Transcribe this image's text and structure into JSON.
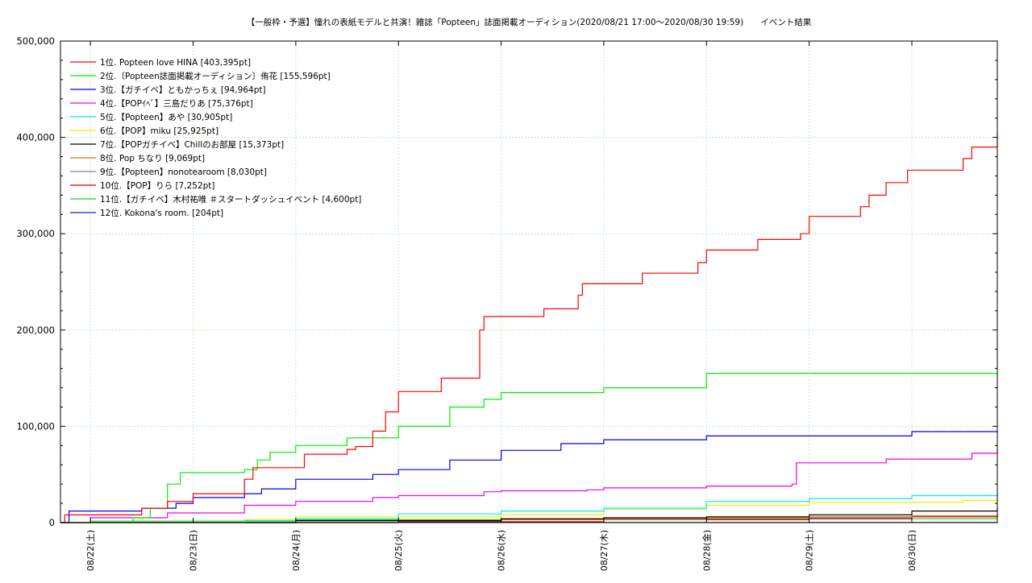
{
  "chart_data": {
    "type": "line",
    "title": "【一般枠・予選】憧れの表紙モデルと共演！雑誌「Popteen」誌面掲載オーディション(2020/08/21 17:00〜2020/08/30 19:59)　　イベント結果",
    "xlabel": "",
    "ylabel": "",
    "xlim": [
      "2020-08-21 17:00",
      "2020-08-30 19:59"
    ],
    "ylim": [
      0,
      500000
    ],
    "grid": true,
    "legend_position": "top-left",
    "yticks": [
      {
        "value": 0,
        "label": "0"
      },
      {
        "value": 100000,
        "label": "100,000"
      },
      {
        "value": 200000,
        "label": "200,000"
      },
      {
        "value": 300000,
        "label": "300,000"
      },
      {
        "value": 400000,
        "label": "400,000"
      },
      {
        "value": 500000,
        "label": "500,000"
      }
    ],
    "xticks": [
      {
        "value": "2020-08-22 00:00",
        "label": "08/22(土)"
      },
      {
        "value": "2020-08-23 00:00",
        "label": "08/23(日)"
      },
      {
        "value": "2020-08-24 00:00",
        "label": "08/24(月)"
      },
      {
        "value": "2020-08-25 00:00",
        "label": "08/25(火)"
      },
      {
        "value": "2020-08-26 00:00",
        "label": "08/26(水)"
      },
      {
        "value": "2020-08-27 00:00",
        "label": "08/27(木)"
      },
      {
        "value": "2020-08-28 00:00",
        "label": "08/28(金)"
      },
      {
        "value": "2020-08-29 00:00",
        "label": "08/29(土)"
      },
      {
        "value": "2020-08-30 00:00",
        "label": "08/30(日)"
      }
    ],
    "series": [
      {
        "name": "1位. Popteen love HINA [403,395pt]",
        "color": "#ff0000",
        "x": [
          "2020-08-21 17:00",
          "2020-08-21 18:00",
          "2020-08-22 08:00",
          "2020-08-22 12:00",
          "2020-08-22 18:00",
          "2020-08-23 00:00",
          "2020-08-23 08:00",
          "2020-08-23 12:00",
          "2020-08-23 14:00",
          "2020-08-24 00:00",
          "2020-08-24 02:00",
          "2020-08-24 09:00",
          "2020-08-24 12:00",
          "2020-08-24 14:00",
          "2020-08-24 18:00",
          "2020-08-24 21:00",
          "2020-08-25 00:00",
          "2020-08-25 08:00",
          "2020-08-25 10:00",
          "2020-08-25 14:00",
          "2020-08-25 19:00",
          "2020-08-25 20:00",
          "2020-08-26 00:00",
          "2020-08-26 06:00",
          "2020-08-26 10:00",
          "2020-08-26 12:00",
          "2020-08-26 18:00",
          "2020-08-26 19:00",
          "2020-08-26 22:00",
          "2020-08-27 07:00",
          "2020-08-27 09:00",
          "2020-08-27 20:00",
          "2020-08-27 22:00",
          "2020-08-28 00:00",
          "2020-08-28 09:00",
          "2020-08-28 12:00",
          "2020-08-28 20:00",
          "2020-08-28 22:00",
          "2020-08-29 00:00",
          "2020-08-29 11:00",
          "2020-08-29 12:00",
          "2020-08-29 14:00",
          "2020-08-29 18:00",
          "2020-08-29 23:00",
          "2020-08-30 00:00",
          "2020-08-30 12:00",
          "2020-08-30 14:00",
          "2020-08-30 19:59"
        ],
        "values": [
          0,
          8000,
          8000,
          15000,
          22000,
          30000,
          30000,
          45000,
          57000,
          57000,
          71000,
          71000,
          76000,
          79000,
          95000,
          115000,
          136000,
          136000,
          150000,
          150000,
          200000,
          214000,
          214000,
          214000,
          222000,
          222000,
          236000,
          248000,
          248000,
          248000,
          259000,
          259000,
          270000,
          283000,
          283000,
          294000,
          294000,
          300000,
          318000,
          318000,
          328000,
          340000,
          353000,
          366000,
          366000,
          378000,
          390000,
          403395
        ]
      },
      {
        "name": "2位.〔Popteen誌面掲載オーディション〕侑花 [155,596pt]",
        "color": "#00ee00",
        "x": [
          "2020-08-21 17:00",
          "2020-08-22 10:00",
          "2020-08-22 14:00",
          "2020-08-22 18:00",
          "2020-08-22 21:00",
          "2020-08-23 12:00",
          "2020-08-23 15:00",
          "2020-08-23 18:00",
          "2020-08-24 00:00",
          "2020-08-24 12:00",
          "2020-08-24 20:00",
          "2020-08-25 00:00",
          "2020-08-25 12:00",
          "2020-08-25 16:00",
          "2020-08-25 20:00",
          "2020-08-26 00:00",
          "2020-08-26 20:00",
          "2020-08-27 00:00",
          "2020-08-27 20:00",
          "2020-08-28 00:00",
          "2020-08-30 19:59"
        ],
        "values": [
          0,
          5000,
          15000,
          40000,
          52000,
          55000,
          65000,
          73000,
          80000,
          88000,
          88000,
          100000,
          120000,
          120000,
          128000,
          135000,
          135000,
          140000,
          140000,
          155000,
          155596
        ]
      },
      {
        "name": "3位.【ガチイベ】ともかっちぇ [94,964pt]",
        "color": "#0000ee",
        "x": [
          "2020-08-21 17:00",
          "2020-08-21 19:00",
          "2020-08-22 12:00",
          "2020-08-22 20:00",
          "2020-08-23 00:00",
          "2020-08-23 12:00",
          "2020-08-23 16:00",
          "2020-08-24 00:00",
          "2020-08-24 18:00",
          "2020-08-25 00:00",
          "2020-08-25 12:00",
          "2020-08-26 00:00",
          "2020-08-26 14:00",
          "2020-08-27 00:00",
          "2020-08-27 20:00",
          "2020-08-28 00:00",
          "2020-08-29 18:00",
          "2020-08-30 00:00",
          "2020-08-30 19:59"
        ],
        "values": [
          0,
          12000,
          15000,
          20000,
          26000,
          30000,
          35000,
          45000,
          50000,
          55000,
          65000,
          75000,
          82000,
          86000,
          86000,
          90000,
          90000,
          94500,
          94964
        ]
      },
      {
        "name": "4位.【POPｲﾍﾞ】三島だりあ [75,376pt]",
        "color": "#ee00ee",
        "x": [
          "2020-08-21 17:00",
          "2020-08-22 00:00",
          "2020-08-22 18:00",
          "2020-08-23 12:00",
          "2020-08-24 00:00",
          "2020-08-24 18:00",
          "2020-08-25 00:00",
          "2020-08-25 20:00",
          "2020-08-26 00:00",
          "2020-08-26 20:00",
          "2020-08-27 00:00",
          "2020-08-28 00:00",
          "2020-08-28 20:00",
          "2020-08-28 21:00",
          "2020-08-29 12:00",
          "2020-08-29 18:00",
          "2020-08-30 14:00",
          "2020-08-30 19:59"
        ],
        "values": [
          0,
          5000,
          10000,
          18000,
          22000,
          26000,
          28000,
          32000,
          33000,
          34000,
          36000,
          38000,
          40000,
          62000,
          62000,
          66000,
          72000,
          75376
        ]
      },
      {
        "name": "5位.【Popteen】あや [30,905pt]",
        "color": "#00eeee",
        "x": [
          "2020-08-21 17:00",
          "2020-08-23 12:00",
          "2020-08-24 00:00",
          "2020-08-25 00:00",
          "2020-08-26 00:00",
          "2020-08-27 00:00",
          "2020-08-28 00:00",
          "2020-08-29 00:00",
          "2020-08-30 00:00",
          "2020-08-30 19:59"
        ],
        "values": [
          0,
          2000,
          4000,
          9000,
          12000,
          15000,
          22000,
          25000,
          28000,
          30905
        ]
      },
      {
        "name": "6位.【POP】miku [25,925pt]",
        "color": "#eeee00",
        "x": [
          "2020-08-21 17:00",
          "2020-08-23 12:00",
          "2020-08-24 00:00",
          "2020-08-26 00:00",
          "2020-08-27 00:00",
          "2020-08-28 00:00",
          "2020-08-29 00:00",
          "2020-08-30 12:00",
          "2020-08-30 19:59"
        ],
        "values": [
          0,
          3000,
          6000,
          8000,
          14000,
          18000,
          21000,
          23000,
          25925
        ]
      },
      {
        "name": "7位.【POPガチイベ】Chillのお部屋 [15,373pt]",
        "color": "#000000",
        "x": [
          "2020-08-21 17:00",
          "2020-08-24 00:00",
          "2020-08-26 00:00",
          "2020-08-27 00:00",
          "2020-08-28 00:00",
          "2020-08-29 00:00",
          "2020-08-30 00:00",
          "2020-08-30 19:59"
        ],
        "values": [
          0,
          2000,
          4000,
          5000,
          6000,
          8000,
          12000,
          15373
        ]
      },
      {
        "name": "8位. Pop ちなり [9,069pt]",
        "color": "#ee6600",
        "x": [
          "2020-08-21 17:00",
          "2020-08-25 00:00",
          "2020-08-26 00:00",
          "2020-08-28 00:00",
          "2020-08-29 00:00",
          "2020-08-30 00:00",
          "2020-08-30 19:59"
        ],
        "values": [
          0,
          2000,
          3000,
          5000,
          6000,
          7000,
          9069
        ]
      },
      {
        "name": "9位.【Popteen】nonotearoom [8,030pt]",
        "color": "#888888",
        "x": [
          "2020-08-21 17:00",
          "2020-08-24 00:00",
          "2020-08-26 00:00",
          "2020-08-28 00:00",
          "2020-08-30 00:00",
          "2020-08-30 19:59"
        ],
        "values": [
          0,
          2000,
          4000,
          5000,
          7000,
          8030
        ]
      },
      {
        "name": "10位.【POP】りら [7,252pt]",
        "color": "#cc0000",
        "x": [
          "2020-08-21 17:00",
          "2020-08-25 00:00",
          "2020-08-27 00:00",
          "2020-08-29 00:00",
          "2020-08-30 00:00",
          "2020-08-30 19:59"
        ],
        "values": [
          0,
          1000,
          3000,
          4000,
          6000,
          7252
        ]
      },
      {
        "name": "11位.【ガチイベ】木村祐唯 ＃スタートダッシュイベント [4,600pt]",
        "color": "#22cc22",
        "x": [
          "2020-08-21 17:00",
          "2020-08-22 00:00",
          "2020-08-24 00:00",
          "2020-08-27 00:00",
          "2020-08-30 19:59"
        ],
        "values": [
          0,
          1500,
          3000,
          4000,
          4600
        ]
      },
      {
        "name": "12位. Kokona's room. [204pt]",
        "color": "#2222cc",
        "x": [
          "2020-08-21 17:00",
          "2020-08-22 00:00",
          "2020-08-30 19:59"
        ],
        "values": [
          0,
          150,
          204
        ]
      }
    ]
  }
}
